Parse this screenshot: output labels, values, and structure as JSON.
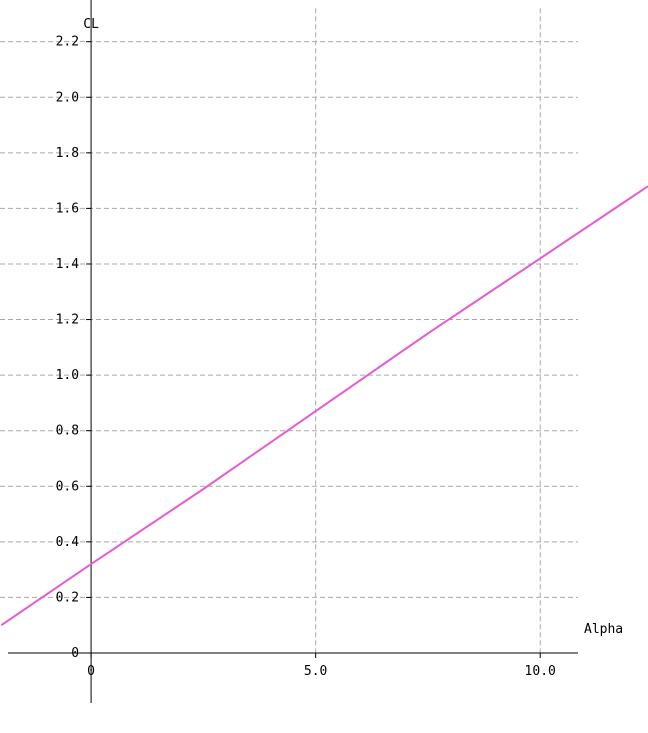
{
  "colors": {
    "background": "#ffffff",
    "axis": "#000000",
    "grid": "#a9a9a9",
    "series": "#e75ad3"
  },
  "chart_data": {
    "type": "line",
    "title": "",
    "xlabel": "Alpha",
    "ylabel": "CL",
    "xlim": [
      -1.85,
      12.4
    ],
    "ylim": [
      -0.18,
      2.35
    ],
    "xticks": [
      {
        "value": 0,
        "label": "0"
      },
      {
        "value": 5,
        "label": "5.0"
      },
      {
        "value": 10,
        "label": "10.0"
      }
    ],
    "yticks": [
      {
        "value": 0,
        "label": "0"
      },
      {
        "value": 0.2,
        "label": "0.2"
      },
      {
        "value": 0.4,
        "label": "0.4"
      },
      {
        "value": 0.6,
        "label": "0.6"
      },
      {
        "value": 0.8,
        "label": "0.8"
      },
      {
        "value": 1.0,
        "label": "1.0"
      },
      {
        "value": 1.2,
        "label": "1.2"
      },
      {
        "value": 1.4,
        "label": "1.4"
      },
      {
        "value": 1.6,
        "label": "1.6"
      },
      {
        "value": 1.8,
        "label": "1.8"
      },
      {
        "value": 2.0,
        "label": "2.0"
      },
      {
        "value": 2.2,
        "label": "2.2"
      }
    ],
    "grid": true,
    "legend": "none",
    "series": [
      {
        "color": "#e75ad3",
        "x": [
          -2.0,
          0.0,
          2.5,
          5.0,
          7.5,
          10.0,
          12.4
        ],
        "y": [
          0.1,
          0.32,
          0.59,
          0.87,
          1.15,
          1.42,
          1.68
        ]
      }
    ]
  }
}
